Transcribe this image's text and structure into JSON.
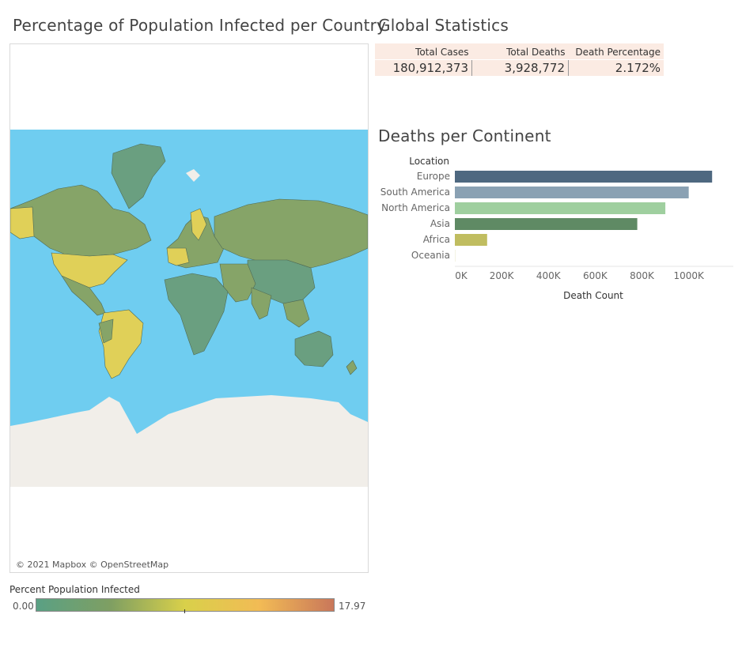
{
  "map": {
    "title": "Percentage of Population Infected per Country",
    "credit": "© 2021 Mapbox © OpenStreetMap",
    "legend": {
      "title": "Percent Population Infected",
      "min": "0.00",
      "max": "17.97"
    },
    "colors": {
      "ocean": "#6fcdf0",
      "land_low": "#6a9f80",
      "land_mid": "#86a468",
      "land_high": "#e0d058",
      "ice": "#f1eee9"
    }
  },
  "stats": {
    "title": "Global Statistics",
    "headers": [
      "Total Cases",
      "Total Deaths",
      "Death Percentage"
    ],
    "values": [
      "180,912,373",
      "3,928,772",
      "2.172%"
    ]
  },
  "chart_data": {
    "type": "bar",
    "orientation": "horizontal",
    "title": "Deaths per Continent",
    "ylabel": "Location",
    "xlabel": "Death Count",
    "categories": [
      "Europe",
      "South America",
      "North America",
      "Asia",
      "Africa",
      "Oceania"
    ],
    "values": [
      1100000,
      1000000,
      900000,
      780000,
      138000,
      1000
    ],
    "colors": [
      "#4e6880",
      "#8aa1b3",
      "#9fcf9f",
      "#5f8a64",
      "#c0bd60",
      "#d6d6a0"
    ],
    "xticks": [
      "0K",
      "200K",
      "400K",
      "600K",
      "800K",
      "1000K"
    ],
    "xlim": [
      0,
      1150000
    ],
    "grid": false
  }
}
